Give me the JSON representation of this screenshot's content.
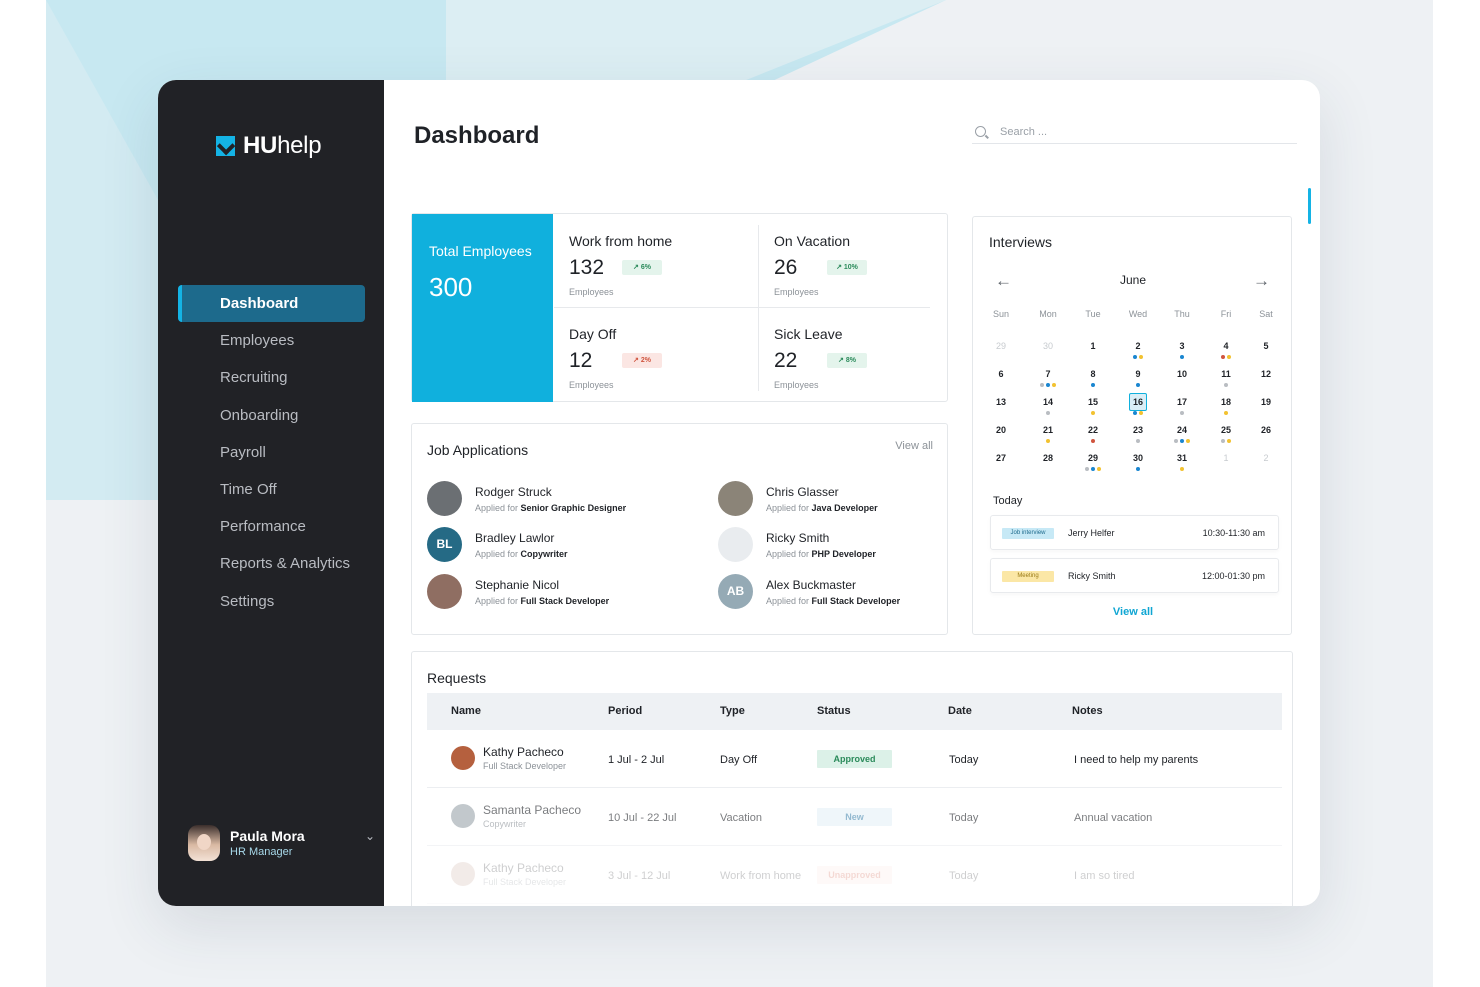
{
  "brand": {
    "name_bold": "HU",
    "name_rest": "help"
  },
  "sidebar": {
    "items": [
      {
        "label": "Dashboard",
        "active": true
      },
      {
        "label": "Employees"
      },
      {
        "label": "Recruiting"
      },
      {
        "label": "Onboarding"
      },
      {
        "label": "Payroll"
      },
      {
        "label": "Time Off"
      },
      {
        "label": "Performance"
      },
      {
        "label": "Reports & Analytics"
      },
      {
        "label": "Settings"
      }
    ],
    "user": {
      "name": "Paula Mora",
      "role": "HR Manager"
    }
  },
  "header": {
    "title": "Dashboard",
    "search_placeholder": "Search ..."
  },
  "stats": {
    "total": {
      "label": "Total Employees",
      "value": "300"
    },
    "wfh": {
      "label": "Work from home",
      "value": "132",
      "change": "6%",
      "sub": "Employees"
    },
    "vacation": {
      "label": "On Vacation",
      "value": "26",
      "change": "10%",
      "sub": "Employees"
    },
    "dayoff": {
      "label": "Day Off",
      "value": "12",
      "change": "2%",
      "sub": "Employees"
    },
    "sick": {
      "label": "Sick Leave",
      "value": "22",
      "change": "8%",
      "sub": "Employees"
    }
  },
  "jobs": {
    "title": "Job Applications",
    "view_all": "View all",
    "applied_prefix": "Applied for",
    "items": [
      {
        "name": "Rodger Struck",
        "role": "Senior Graphic Designer",
        "initials": "",
        "color": "#6b6f73"
      },
      {
        "name": "Chris Glasser",
        "role": "Java Developer",
        "initials": "",
        "color": "#8b8478"
      },
      {
        "name": "Bradley Lawlor",
        "role": "Copywriter",
        "initials": "BL",
        "color": "#256a85"
      },
      {
        "name": "Ricky Smith",
        "role": "PHP Developer",
        "initials": "",
        "color": "#e9ecef"
      },
      {
        "name": "Stephanie Nicol",
        "role": "Full Stack Developer",
        "initials": "",
        "color": "#8f6e62"
      },
      {
        "name": "Alex Buckmaster",
        "role": "Full Stack Developer",
        "initials": "AB",
        "color": "#95aab5"
      }
    ]
  },
  "interviews": {
    "title": "Interviews",
    "month": "June",
    "dow": [
      "Sun",
      "Mon",
      "Tue",
      "Wed",
      "Thu",
      "Fri",
      "Sat"
    ],
    "weeks": [
      [
        "29",
        "30",
        "1",
        "2",
        "3",
        "4",
        "5"
      ],
      [
        "6",
        "7",
        "8",
        "9",
        "10",
        "11",
        "12"
      ],
      [
        "13",
        "14",
        "15",
        "16",
        "17",
        "18",
        "19"
      ],
      [
        "20",
        "21",
        "22",
        "23",
        "24",
        "25",
        "26"
      ],
      [
        "27",
        "28",
        "29",
        "30",
        "31",
        "1",
        "2"
      ]
    ],
    "today_label": "Today",
    "events": [
      {
        "tag": "Job interview",
        "name": "Jerry Helfer",
        "time": "10:30-11:30 am"
      },
      {
        "tag": "Meeting",
        "name": "Ricky Smith",
        "time": "12:00-01:30 pm"
      }
    ],
    "view_all": "View all"
  },
  "requests": {
    "title": "Requests",
    "columns": [
      "Name",
      "Period",
      "Type",
      "Status",
      "Date",
      "Notes"
    ],
    "rows": [
      {
        "name": "Kathy Pacheco",
        "role": "Full Stack Developer",
        "period": "1 Jul - 2 Jul",
        "type": "Day Off",
        "status": "Approved",
        "date": "Today",
        "notes": "I need to help my parents"
      },
      {
        "name": "Samanta Pacheco",
        "role": "Copywriter",
        "period": "10 Jul - 22 Jul",
        "type": "Vacation",
        "status": "New",
        "date": "Today",
        "notes": "Annual vacation"
      },
      {
        "name": "Kathy Pacheco",
        "role": "Full Stack Developer",
        "period": "3 Jul - 12 Jul",
        "type": "Work from home",
        "status": "Unapproved",
        "date": "Today",
        "notes": "I am so tired"
      }
    ]
  },
  "colors": {
    "accent": "#10b0dd",
    "sidebar": "#212226",
    "active_nav": "#1d6a8c",
    "dot_blue": "#1a86d0",
    "dot_yellow": "#f2c230",
    "dot_grey": "#b9bdc2",
    "dot_red": "#d0553f"
  }
}
